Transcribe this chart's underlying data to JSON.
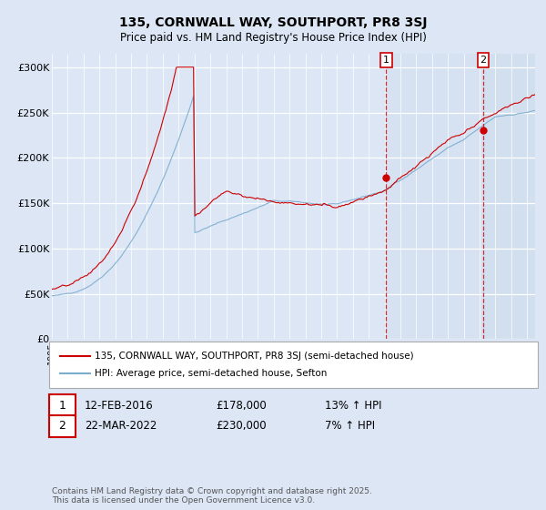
{
  "title1": "135, CORNWALL WAY, SOUTHPORT, PR8 3SJ",
  "title2": "Price paid vs. HM Land Registry's House Price Index (HPI)",
  "ylabel_ticks": [
    "£0",
    "£50K",
    "£100K",
    "£150K",
    "£200K",
    "£250K",
    "£300K"
  ],
  "ytick_values": [
    0,
    50000,
    100000,
    150000,
    200000,
    250000,
    300000
  ],
  "ylim": [
    0,
    315000
  ],
  "xlim_start": 1995.0,
  "xlim_end": 2025.5,
  "fig_bg": "#dce6f5",
  "plot_bg": "#dce6f5",
  "grid_color": "#ffffff",
  "red_color": "#cc0000",
  "blue_color": "#7aacce",
  "shade_color": "#c5d5e8",
  "vline1_x": 2016.1,
  "vline2_x": 2022.22,
  "marker1_y": 178000,
  "marker2_y": 230000,
  "legend_label1": "135, CORNWALL WAY, SOUTHPORT, PR8 3SJ (semi-detached house)",
  "legend_label2": "HPI: Average price, semi-detached house, Sefton",
  "note1_num": "1",
  "note1_date": "12-FEB-2016",
  "note1_price": "£178,000",
  "note1_hpi": "13% ↑ HPI",
  "note2_num": "2",
  "note2_date": "22-MAR-2022",
  "note2_price": "£230,000",
  "note2_hpi": "7% ↑ HPI",
  "copyright": "Contains HM Land Registry data © Crown copyright and database right 2025.\nThis data is licensed under the Open Government Licence v3.0."
}
